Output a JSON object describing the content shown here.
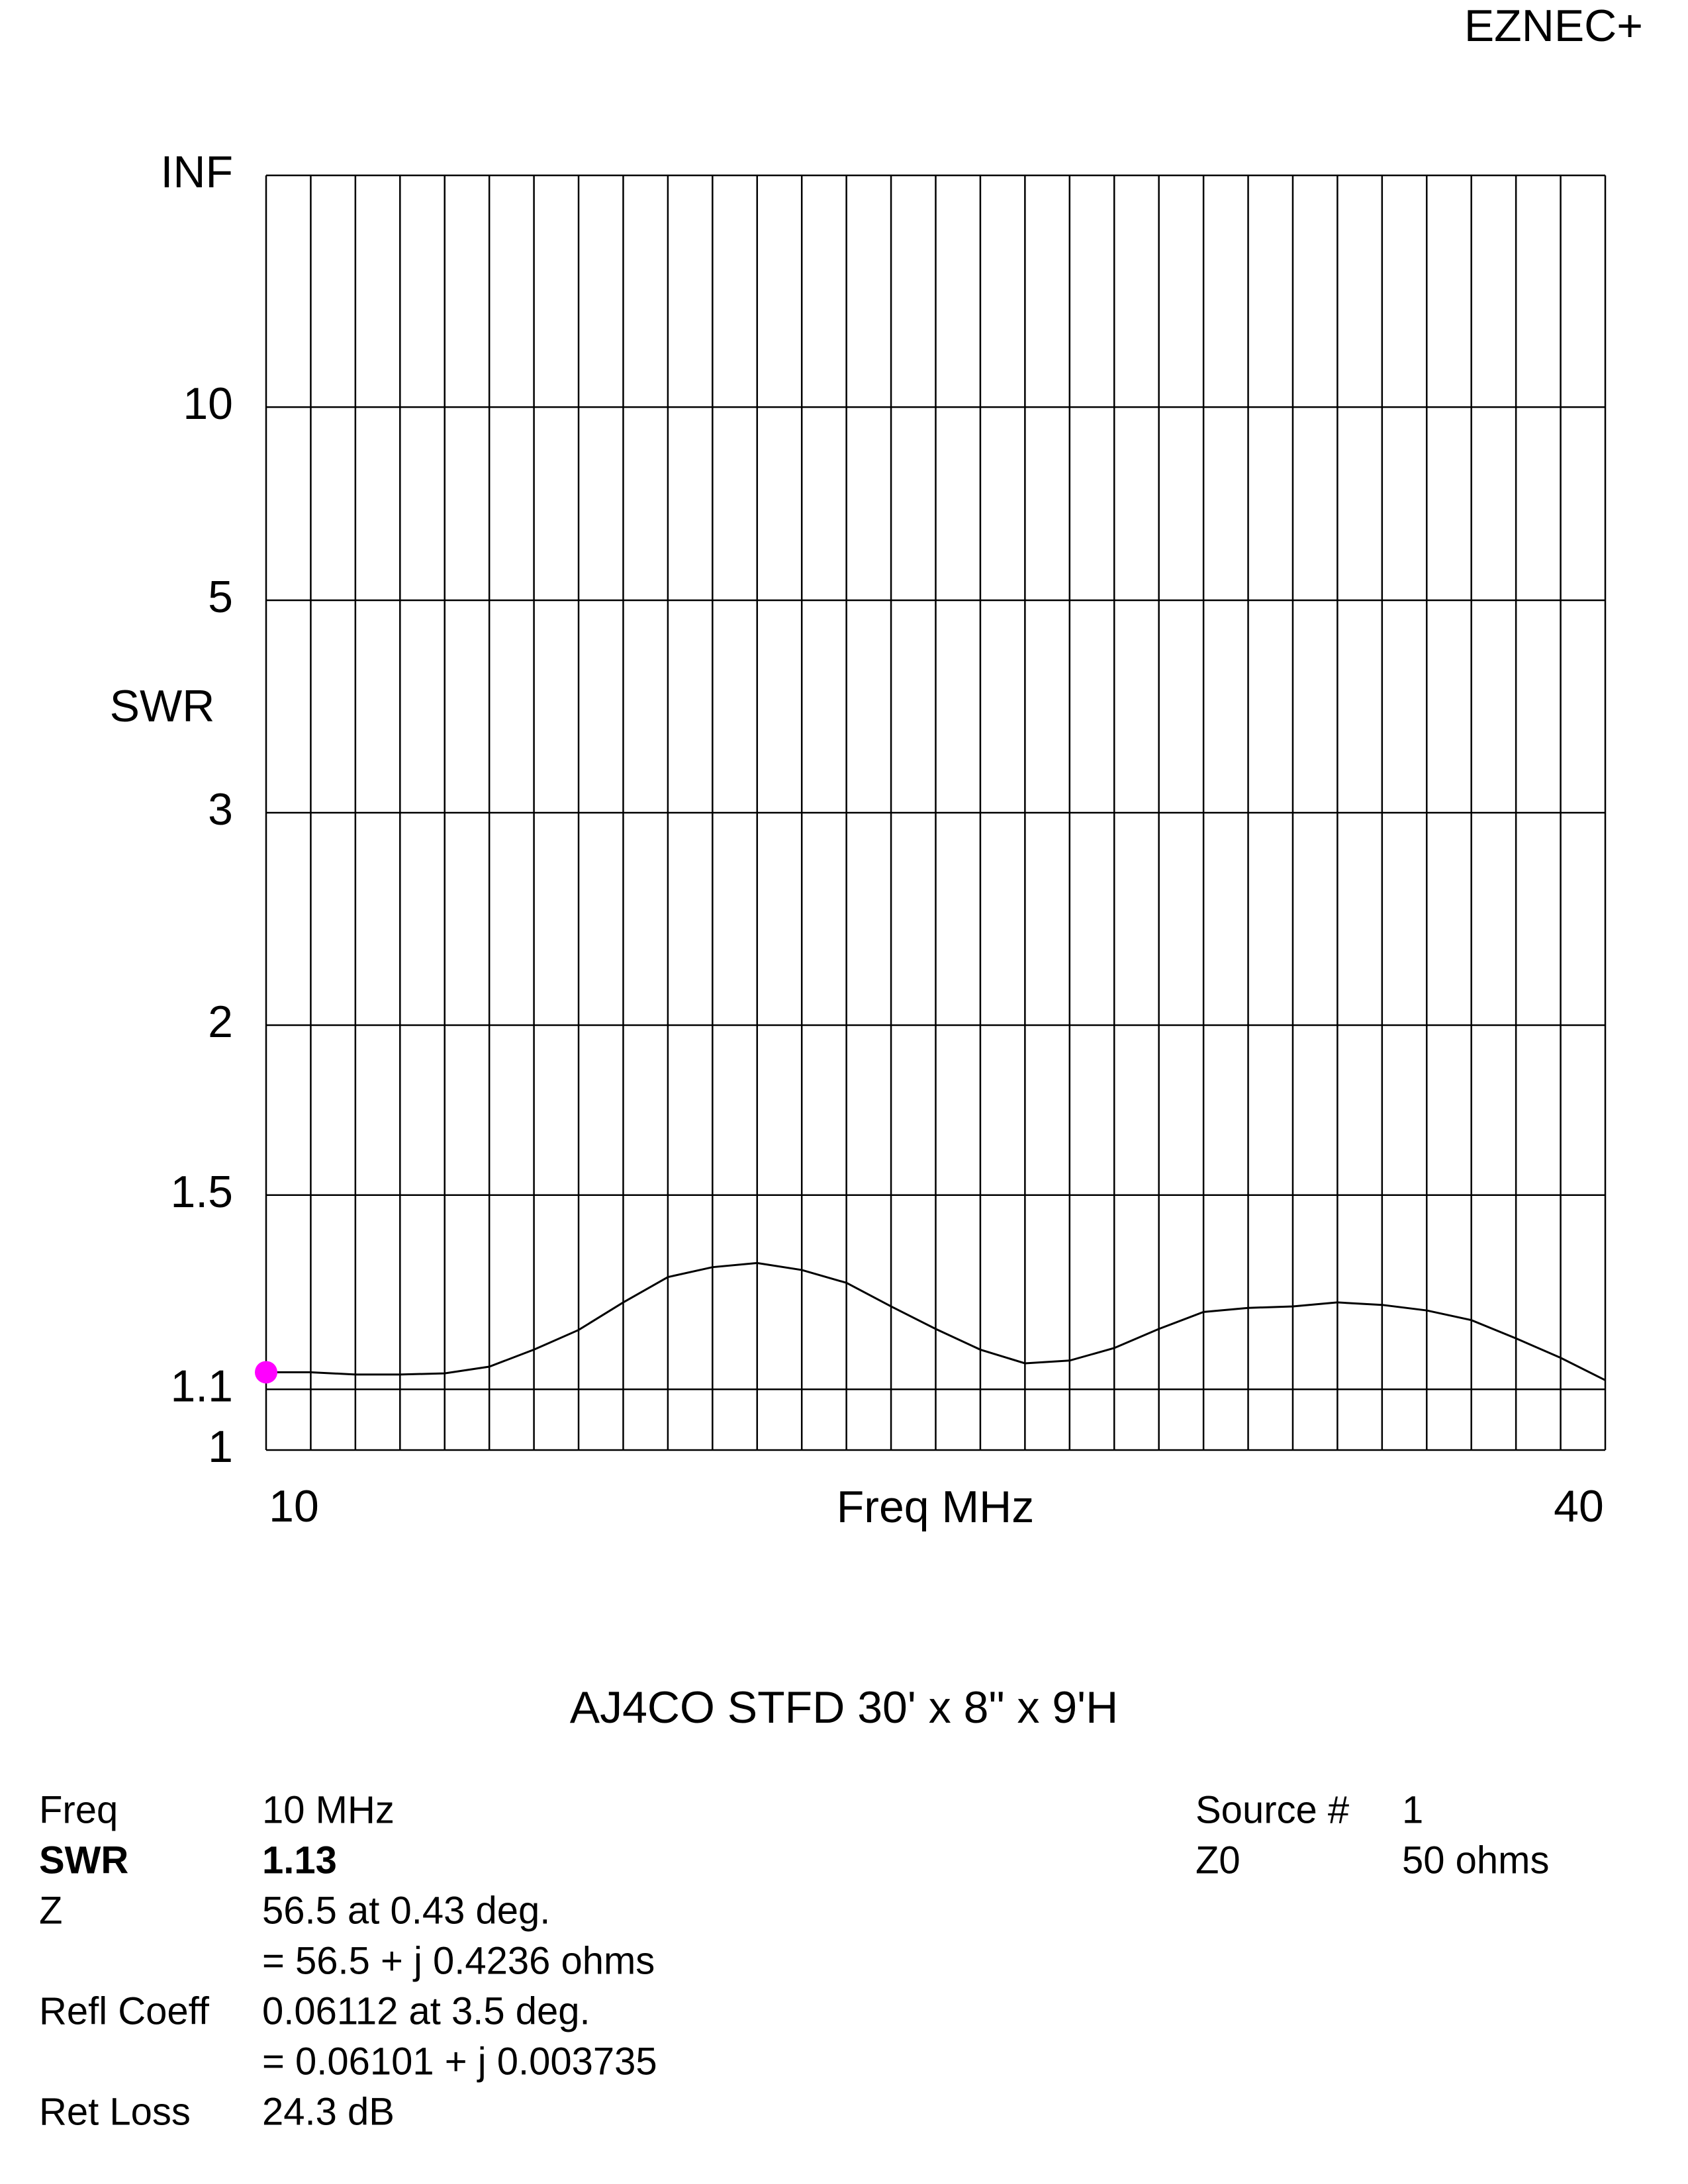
{
  "header": {
    "title": "EZNEC+"
  },
  "chart_data": {
    "type": "line",
    "title": "AJ4CO STFD 30' x 8\" x 9'H",
    "x_label": "Freq MHz",
    "y_label": "SWR",
    "yscale": "reflection",
    "x": [
      10,
      11,
      12,
      13,
      14,
      15,
      16,
      17,
      18,
      19,
      20,
      21,
      22,
      23,
      24,
      25,
      26,
      27,
      28,
      29,
      30,
      31,
      32,
      33,
      34,
      35,
      36,
      37,
      38,
      39,
      40
    ],
    "series": [
      {
        "name": "SWR",
        "color": "#000000",
        "values": [
          1.13,
          1.13,
          1.126,
          1.126,
          1.128,
          1.14,
          1.171,
          1.208,
          1.262,
          1.314,
          1.335,
          1.344,
          1.329,
          1.302,
          1.254,
          1.21,
          1.171,
          1.146,
          1.151,
          1.174,
          1.21,
          1.243,
          1.251,
          1.254,
          1.262,
          1.257,
          1.246,
          1.227,
          1.192,
          1.156,
          1.116
        ]
      }
    ],
    "marker": {
      "x": 10,
      "value": 1.13,
      "color": "#ff00ff"
    },
    "xlim": [
      10,
      40
    ],
    "xticks": [
      10,
      40
    ],
    "xgrid": [
      10,
      11,
      12,
      13,
      14,
      15,
      16,
      17,
      18,
      19,
      20,
      21,
      22,
      23,
      24,
      25,
      26,
      27,
      28,
      29,
      30,
      31,
      32,
      33,
      34,
      35,
      36,
      37,
      38,
      39,
      40
    ],
    "ylim": [
      1,
      null
    ],
    "yticks": [
      1,
      1.1,
      1.5,
      2,
      3,
      5,
      10,
      {
        "value": null,
        "label": "INF"
      }
    ],
    "grid": true
  },
  "info": {
    "left": [
      {
        "label": "Freq",
        "lines": [
          "10 MHz"
        ],
        "bold": false
      },
      {
        "label": "SWR",
        "lines": [
          "1.13"
        ],
        "bold": true
      },
      {
        "label": "Z",
        "lines": [
          "56.5 at 0.43 deg.",
          "= 56.5 + j 0.4236 ohms"
        ],
        "bold": false
      },
      {
        "label": "Refl Coeff",
        "lines": [
          "0.06112 at 3.5 deg.",
          "= 0.06101 + j 0.003735"
        ],
        "bold": false
      },
      {
        "label": "Ret Loss",
        "lines": [
          "24.3 dB"
        ],
        "bold": false
      }
    ],
    "right": [
      {
        "label": "Source #",
        "lines": [
          "1"
        ],
        "bold": false
      },
      {
        "label": "Z0",
        "lines": [
          "50 ohms"
        ],
        "bold": false
      }
    ]
  }
}
